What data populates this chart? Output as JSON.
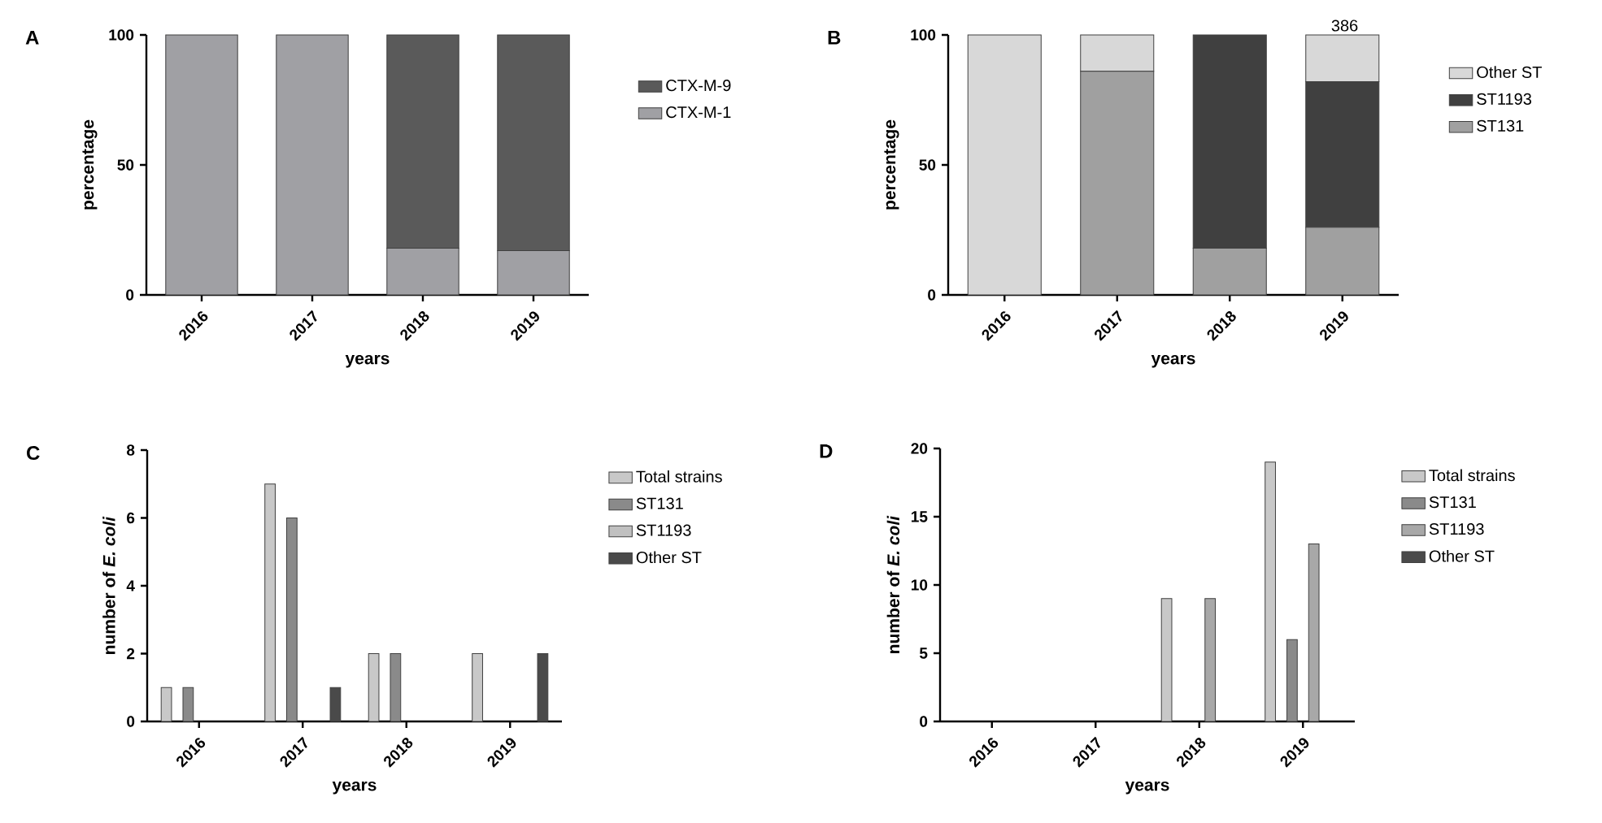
{
  "chart_data": [
    {
      "type": "bar",
      "title": "A",
      "xlabel": "years",
      "ylabel": "percentage",
      "categories": [
        "2016",
        "2017",
        "2018",
        "2019"
      ],
      "stacked": true,
      "ylim": [
        0,
        100
      ],
      "yticks": [
        0,
        50,
        100
      ],
      "legend": "right",
      "series": [
        {
          "name": "CTX-M-1",
          "color": "#a0a0a4",
          "values": [
            100,
            100,
            18,
            17
          ]
        },
        {
          "name": "CTX-M-9",
          "color": "#5a5a5a",
          "values": [
            0,
            0,
            82,
            83
          ]
        }
      ]
    },
    {
      "type": "bar",
      "title": "B",
      "xlabel": "years",
      "ylabel": "percentage",
      "categories": [
        "2016",
        "2017",
        "2018",
        "2019"
      ],
      "stacked": true,
      "ylim": [
        0,
        100
      ],
      "yticks": [
        0,
        50,
        100
      ],
      "legend": "right",
      "annotations": [
        "386"
      ],
      "series": [
        {
          "name": "ST131",
          "color": "#a0a0a0",
          "values": [
            0,
            86,
            18,
            26
          ]
        },
        {
          "name": "ST1193",
          "color": "#404040",
          "values": [
            0,
            0,
            82,
            56
          ]
        },
        {
          "name": "Other ST",
          "color": "#d8d8d8",
          "values": [
            100,
            14,
            0,
            18
          ]
        }
      ]
    },
    {
      "type": "bar",
      "title": "C",
      "xlabel": "years",
      "ylabel": "number of *E. coli*",
      "categories": [
        "2016",
        "2017",
        "2018",
        "2019"
      ],
      "ylim": [
        0,
        8
      ],
      "yticks": [
        0,
        2,
        4,
        6,
        8
      ],
      "legend": "right",
      "series": [
        {
          "name": "Total strains",
          "color": "#c8c8c8",
          "values": [
            1,
            7,
            2,
            2
          ]
        },
        {
          "name": "ST131",
          "color": "#8a8a8a",
          "values": [
            1,
            6,
            2,
            0
          ]
        },
        {
          "name": "ST1193",
          "color": "#c0c0c0",
          "values": [
            0,
            0,
            0,
            0
          ]
        },
        {
          "name": "Other ST",
          "color": "#4a4a4a",
          "values": [
            0,
            1,
            0,
            2
          ]
        }
      ]
    },
    {
      "type": "bar",
      "title": "D",
      "xlabel": "years",
      "ylabel": "number of *E. coli*",
      "categories": [
        "2016",
        "2017",
        "2018",
        "2019"
      ],
      "ylim": [
        0,
        20
      ],
      "yticks": [
        0,
        5,
        10,
        15,
        20
      ],
      "legend": "right",
      "series": [
        {
          "name": "Total strains",
          "color": "#c8c8c8",
          "values": [
            0,
            0,
            9,
            19
          ]
        },
        {
          "name": "ST131",
          "color": "#8a8a8a",
          "values": [
            0,
            0,
            0,
            6
          ]
        },
        {
          "name": "ST1193",
          "color": "#a8a8a8",
          "values": [
            0,
            0,
            9,
            13
          ]
        },
        {
          "name": "Other ST",
          "color": "#4a4a4a",
          "values": [
            0,
            0,
            0,
            0
          ]
        }
      ]
    }
  ]
}
